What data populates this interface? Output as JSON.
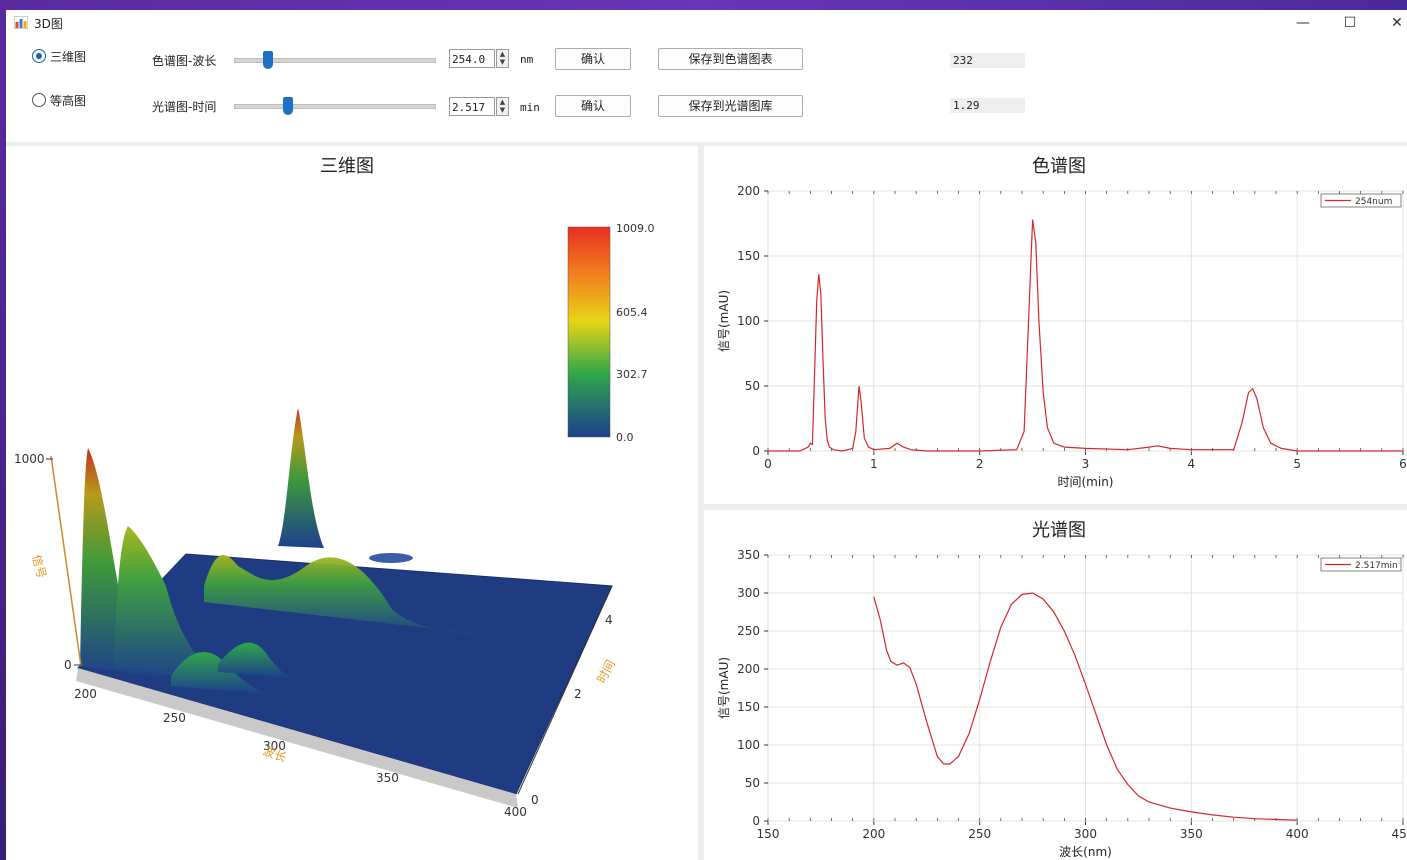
{
  "window": {
    "title": "3D图",
    "minimize": "—",
    "maximize": "☐",
    "close": "✕"
  },
  "toolbar": {
    "radio_3d": "三维图",
    "radio_contour": "等高图",
    "row1": {
      "label": "色谱图-波长",
      "slider_fraction": 0.17,
      "value": "254.0",
      "unit": "nm",
      "confirm": "确认",
      "save": "保存到色谱图表",
      "readout": "232"
    },
    "row2": {
      "label": "光谱图-时间",
      "slider_fraction": 0.27,
      "value": "2.517",
      "unit": "min",
      "confirm": "确认",
      "save": "保存到光谱图库",
      "readout": "1.29"
    }
  },
  "plot3d": {
    "title": "三维图",
    "colorbar_ticks": [
      "1009.0",
      "605.4",
      "302.7",
      "0.0"
    ],
    "z_axis_label": "信号",
    "z_ticks": [
      "1000",
      "0"
    ],
    "x_axis_label": "波长",
    "x_ticks": [
      "200",
      "250",
      "300",
      "350",
      "400"
    ],
    "y_axis_label": "时间",
    "y_ticks": [
      "4",
      "2",
      "0"
    ],
    "colors": {
      "high": "#e8301f",
      "mid": "#e6d516",
      "low_mid": "#2fa64a",
      "low": "#1d3f8c"
    }
  },
  "chart_data": [
    {
      "type": "line",
      "title": "色谱图",
      "xlabel": "时间(min)",
      "ylabel": "信号(mAU)",
      "xlim": [
        0,
        6
      ],
      "ylim": [
        0,
        200
      ],
      "xticks": [
        "0",
        "1",
        "2",
        "3",
        "4",
        "5",
        "6"
      ],
      "yticks": [
        "0",
        "50",
        "100",
        "150",
        "200"
      ],
      "series": [
        {
          "name": "254num",
          "color": "#d62728",
          "x": [
            0.0,
            0.3,
            0.38,
            0.4,
            0.42,
            0.44,
            0.46,
            0.48,
            0.5,
            0.52,
            0.54,
            0.56,
            0.58,
            0.62,
            0.7,
            0.8,
            0.83,
            0.86,
            0.88,
            0.91,
            0.95,
            1.0,
            1.15,
            1.22,
            1.28,
            1.35,
            1.5,
            2.0,
            2.35,
            2.42,
            2.46,
            2.5,
            2.53,
            2.56,
            2.6,
            2.64,
            2.7,
            2.8,
            3.0,
            3.4,
            3.6,
            3.68,
            3.8,
            4.0,
            4.4,
            4.48,
            4.54,
            4.58,
            4.62,
            4.68,
            4.75,
            4.85,
            5.0,
            5.5,
            6.0
          ],
          "y": [
            0,
            0,
            3,
            6,
            5,
            60,
            115,
            136,
            120,
            70,
            25,
            8,
            3,
            1,
            0,
            2,
            15,
            50,
            38,
            10,
            3,
            1,
            2,
            6,
            3,
            1,
            0,
            0,
            1,
            15,
            95,
            178,
            160,
            100,
            45,
            18,
            6,
            3,
            2,
            1,
            3,
            4,
            2,
            1,
            1,
            22,
            45,
            48,
            40,
            18,
            6,
            2,
            0,
            0,
            0
          ]
        }
      ]
    },
    {
      "type": "line",
      "title": "光谱图",
      "xlabel": "波长(nm)",
      "ylabel": "信号(mAU)",
      "xlim": [
        150,
        450
      ],
      "ylim": [
        0,
        350
      ],
      "xticks": [
        "150",
        "200",
        "250",
        "300",
        "350",
        "400",
        "450"
      ],
      "yticks": [
        "0",
        "50",
        "100",
        "150",
        "200",
        "250",
        "300",
        "350"
      ],
      "series": [
        {
          "name": "2.517min",
          "color": "#d62728",
          "x": [
            200,
            203,
            206,
            208,
            211,
            214,
            217,
            220,
            225,
            230,
            233,
            236,
            240,
            245,
            250,
            255,
            260,
            265,
            270,
            275,
            280,
            285,
            290,
            295,
            300,
            305,
            310,
            315,
            320,
            325,
            330,
            340,
            350,
            360,
            370,
            380,
            390,
            400
          ],
          "y": [
            295,
            265,
            225,
            210,
            205,
            208,
            202,
            180,
            130,
            85,
            75,
            75,
            85,
            115,
            160,
            210,
            255,
            285,
            298,
            300,
            292,
            275,
            250,
            218,
            180,
            140,
            100,
            68,
            48,
            33,
            25,
            17,
            12,
            8,
            5,
            3,
            2,
            1
          ]
        }
      ]
    }
  ]
}
